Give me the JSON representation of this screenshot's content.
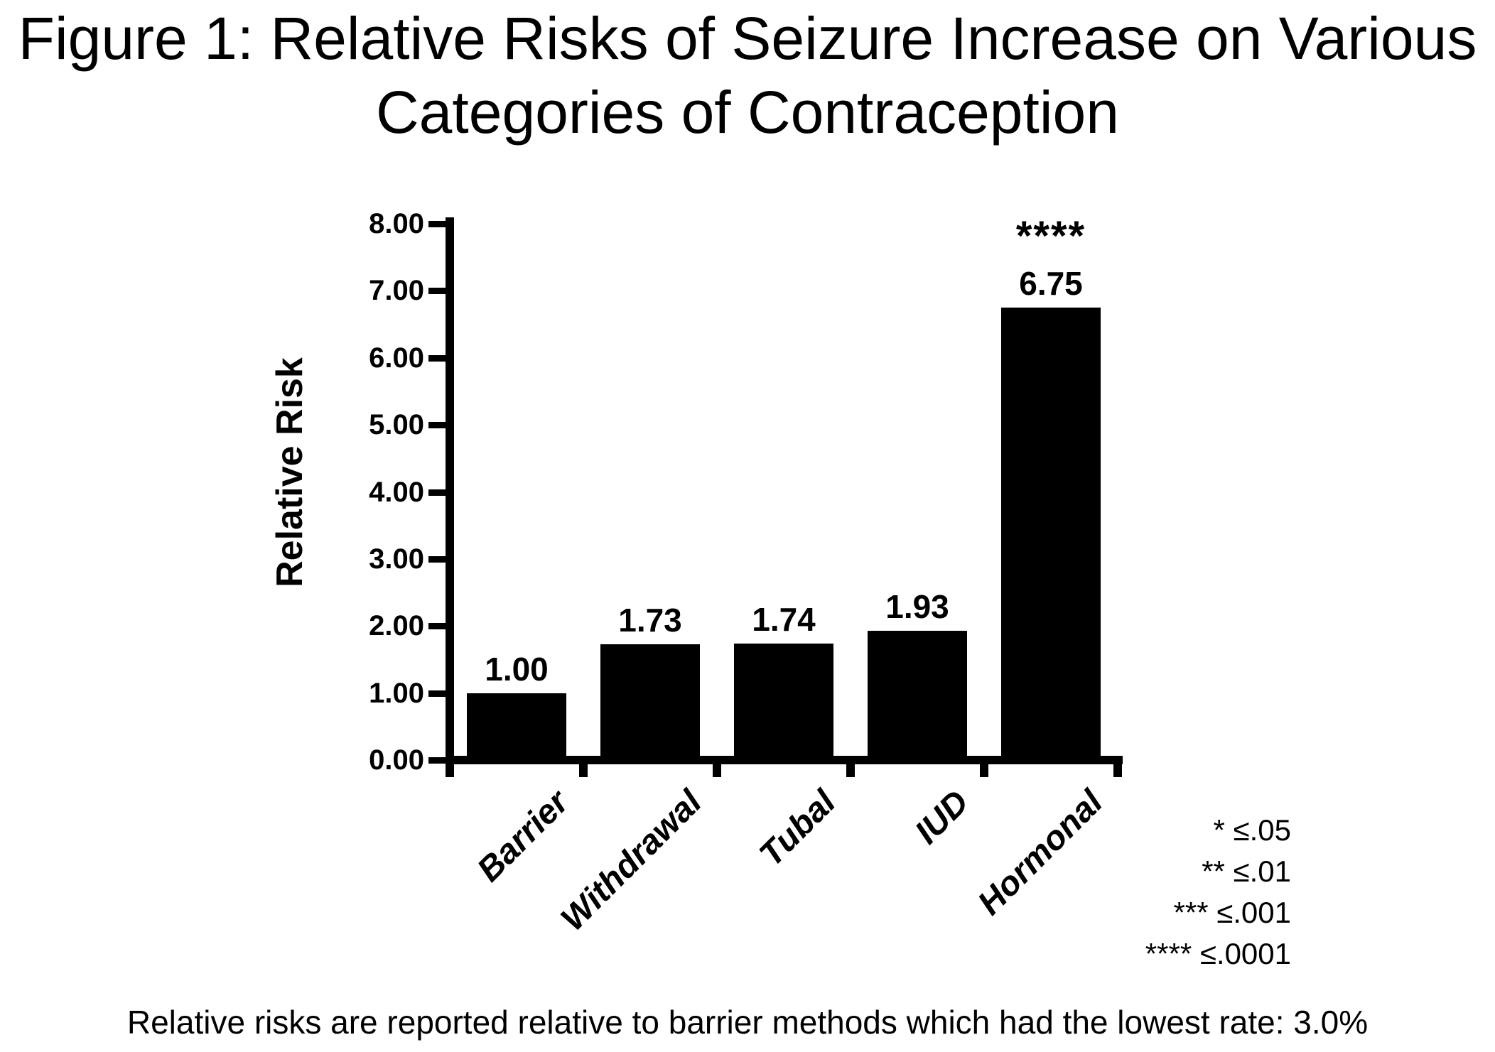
{
  "figure": {
    "title_line1": "Figure 1: Relative Risks of Seizure Increase on Various",
    "title_line2": "Categories of Contraception",
    "footnote": "Relative risks are reported relative to barrier methods which had the lowest rate: 3.0%"
  },
  "chart_data": {
    "type": "bar",
    "title": "Figure 1: Relative Risks of Seizure Increase on Various Categories of Contraception",
    "categories": [
      "Barrier",
      "Withdrawal",
      "Tubal",
      "IUD",
      "Hormonal"
    ],
    "values": [
      1.0,
      1.73,
      1.74,
      1.93,
      6.75
    ],
    "value_labels": [
      "1.00",
      "1.73",
      "1.74",
      "1.93",
      "6.75"
    ],
    "significance_markers": [
      "",
      "",
      "",
      "",
      "****"
    ],
    "xlabel": "",
    "ylabel": "Relative Risk",
    "ylim": [
      0,
      8
    ],
    "ytick_step": 1,
    "ytick_labels": [
      "0.00",
      "1.00",
      "2.00",
      "3.00",
      "4.00",
      "5.00",
      "6.00",
      "7.00",
      "8.00"
    ],
    "bar_color": "#000000",
    "background_color": "#ffffff",
    "grid": false,
    "legend_position": "bottom-right"
  },
  "legend": {
    "lines": [
      "* ≤.05",
      "** ≤.01",
      "*** ≤.001",
      "**** ≤.0001"
    ]
  }
}
